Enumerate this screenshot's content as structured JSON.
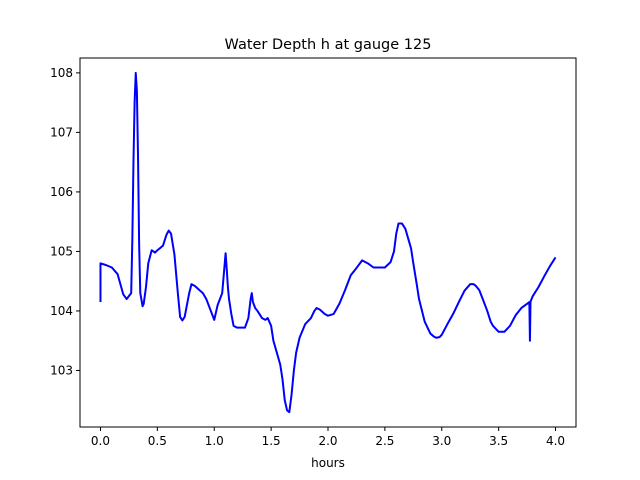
{
  "chart_data": {
    "type": "line",
    "title": "Water Depth h at gauge 125",
    "xlabel": "hours",
    "ylabel": "",
    "xlim": [
      -0.18,
      4.18
    ],
    "ylim": [
      102.05,
      108.25
    ],
    "xticks": [
      0.0,
      0.5,
      1.0,
      1.5,
      2.0,
      2.5,
      3.0,
      3.5,
      4.0
    ],
    "xtick_labels": [
      "0.0",
      "0.5",
      "1.0",
      "1.5",
      "2.0",
      "2.5",
      "3.0",
      "3.5",
      "4.0"
    ],
    "yticks": [
      103,
      104,
      105,
      106,
      107,
      108
    ],
    "ytick_labels": [
      "103",
      "104",
      "105",
      "106",
      "107",
      "108"
    ],
    "grid": false,
    "color": "#0000ff",
    "series": [
      {
        "x": [
          0.0,
          0.0,
          0.0,
          0.05,
          0.1,
          0.15,
          0.2,
          0.23,
          0.27,
          0.28,
          0.29,
          0.3,
          0.31,
          0.32,
          0.33,
          0.34,
          0.35,
          0.37,
          0.38,
          0.4,
          0.42,
          0.45,
          0.48,
          0.5,
          0.52,
          0.55,
          0.58,
          0.6,
          0.62,
          0.65,
          0.68,
          0.7,
          0.72,
          0.74,
          0.76,
          0.78,
          0.8,
          0.83,
          0.87,
          0.9,
          0.93,
          0.97,
          1.0,
          1.03,
          1.07,
          1.1,
          1.11,
          1.12,
          1.13,
          1.15,
          1.17,
          1.2,
          1.23,
          1.27,
          1.3,
          1.32,
          1.33,
          1.34,
          1.36,
          1.38,
          1.42,
          1.45,
          1.47,
          1.5,
          1.52,
          1.55,
          1.58,
          1.6,
          1.62,
          1.64,
          1.66,
          1.68,
          1.7,
          1.72,
          1.75,
          1.8,
          1.85,
          1.88,
          1.9,
          1.93,
          1.97,
          2.0,
          2.05,
          2.1,
          2.15,
          2.2,
          2.25,
          2.3,
          2.35,
          2.4,
          2.45,
          2.5,
          2.55,
          2.58,
          2.6,
          2.62,
          2.65,
          2.68,
          2.7,
          2.73,
          2.75,
          2.78,
          2.8,
          2.85,
          2.9,
          2.93,
          2.95,
          2.98,
          3.0,
          3.05,
          3.1,
          3.15,
          3.2,
          3.25,
          3.28,
          3.3,
          3.33,
          3.36,
          3.4,
          3.43,
          3.45,
          3.5,
          3.55,
          3.6,
          3.65,
          3.7,
          3.75,
          3.77,
          3.775,
          3.78,
          3.785,
          3.8,
          3.85,
          3.9,
          3.95,
          4.0
        ],
        "y": [
          104.15,
          104.4,
          104.8,
          104.77,
          104.73,
          104.62,
          104.28,
          104.2,
          104.3,
          105.2,
          106.5,
          107.5,
          108.0,
          107.7,
          106.6,
          105.1,
          104.3,
          104.08,
          104.12,
          104.4,
          104.8,
          105.02,
          104.98,
          105.02,
          105.05,
          105.1,
          105.28,
          105.35,
          105.3,
          104.95,
          104.3,
          103.9,
          103.84,
          103.9,
          104.1,
          104.3,
          104.45,
          104.42,
          104.35,
          104.3,
          104.2,
          104.0,
          103.85,
          104.1,
          104.3,
          104.97,
          104.7,
          104.4,
          104.2,
          103.95,
          103.75,
          103.72,
          103.72,
          103.72,
          103.88,
          104.2,
          104.3,
          104.15,
          104.05,
          104.0,
          103.88,
          103.85,
          103.88,
          103.75,
          103.5,
          103.3,
          103.1,
          102.85,
          102.5,
          102.33,
          102.3,
          102.6,
          103.0,
          103.3,
          103.55,
          103.78,
          103.88,
          104.0,
          104.05,
          104.02,
          103.95,
          103.92,
          103.95,
          104.12,
          104.35,
          104.6,
          104.72,
          104.85,
          104.8,
          104.73,
          104.73,
          104.73,
          104.82,
          105.0,
          105.3,
          105.47,
          105.47,
          105.38,
          105.25,
          105.05,
          104.8,
          104.45,
          104.2,
          103.82,
          103.62,
          103.57,
          103.55,
          103.56,
          103.6,
          103.78,
          103.95,
          104.15,
          104.34,
          104.45,
          104.45,
          104.42,
          104.35,
          104.2,
          104.0,
          103.82,
          103.75,
          103.65,
          103.65,
          103.75,
          103.93,
          104.05,
          104.12,
          104.15,
          103.5,
          104.15,
          104.18,
          104.25,
          104.4,
          104.58,
          104.75,
          104.9
        ]
      }
    ]
  }
}
